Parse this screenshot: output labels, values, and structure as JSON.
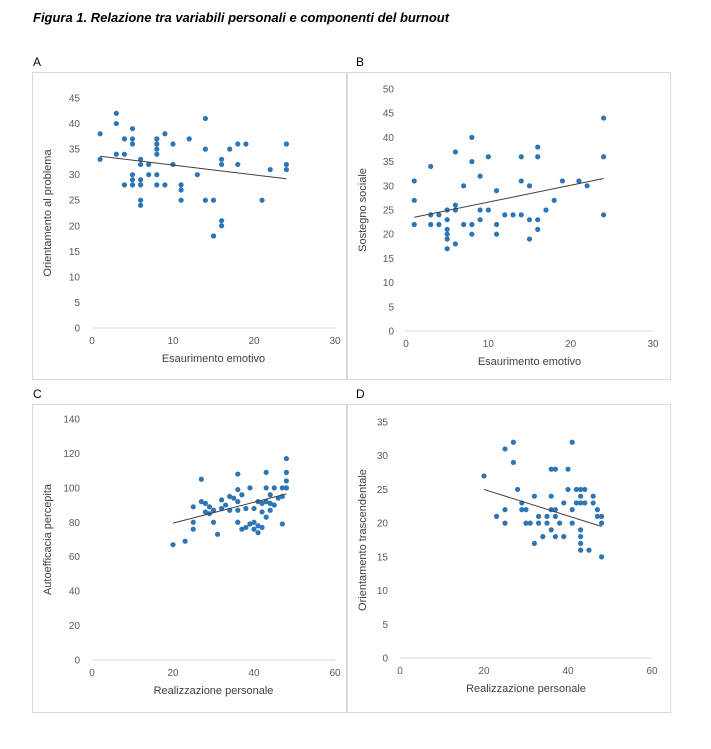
{
  "figure": {
    "title": "Figura 1. Relazione tra variabili personali e componenti del burnout"
  },
  "colors": {
    "marker": "#2e75b6",
    "trend": "#404040",
    "axis": "#d9d9d9",
    "text": "#595959"
  },
  "chart_data": [
    {
      "panel": "A",
      "type": "scatter",
      "xlabel": "Esaurimento emotivo",
      "ylabel": "Orientamento al problema",
      "xlim": [
        0,
        30
      ],
      "ylim": [
        0,
        45
      ],
      "xticks": [
        0,
        10,
        20,
        30
      ],
      "yticks": [
        0,
        5,
        10,
        15,
        20,
        25,
        30,
        35,
        40,
        45
      ],
      "trendline": {
        "x": [
          1,
          24
        ],
        "y": [
          33.6,
          29.2
        ]
      },
      "points": [
        [
          1,
          38
        ],
        [
          1,
          33
        ],
        [
          3,
          42
        ],
        [
          3,
          40
        ],
        [
          3,
          34
        ],
        [
          4,
          37
        ],
        [
          4,
          34
        ],
        [
          4,
          28
        ],
        [
          5,
          39
        ],
        [
          5,
          37
        ],
        [
          5,
          36
        ],
        [
          5,
          30
        ],
        [
          5,
          28
        ],
        [
          5,
          29
        ],
        [
          6,
          33
        ],
        [
          6,
          32
        ],
        [
          6,
          25
        ],
        [
          6,
          24
        ],
        [
          6,
          28
        ],
        [
          6,
          29
        ],
        [
          7,
          32
        ],
        [
          7,
          30
        ],
        [
          8,
          37
        ],
        [
          8,
          36
        ],
        [
          8,
          35
        ],
        [
          8,
          34
        ],
        [
          8,
          30
        ],
        [
          8,
          28
        ],
        [
          9,
          38
        ],
        [
          9,
          28
        ],
        [
          10,
          36
        ],
        [
          10,
          32
        ],
        [
          11,
          28
        ],
        [
          11,
          27
        ],
        [
          11,
          25
        ],
        [
          12,
          37
        ],
        [
          13,
          30
        ],
        [
          14,
          41
        ],
        [
          14,
          35
        ],
        [
          14,
          25
        ],
        [
          15,
          25
        ],
        [
          15,
          18
        ],
        [
          16,
          33
        ],
        [
          16,
          32
        ],
        [
          16,
          21
        ],
        [
          16,
          20
        ],
        [
          17,
          35
        ],
        [
          18,
          36
        ],
        [
          18,
          32
        ],
        [
          19,
          36
        ],
        [
          21,
          25
        ],
        [
          22,
          31
        ],
        [
          24,
          36
        ],
        [
          24,
          32
        ],
        [
          24,
          31
        ]
      ]
    },
    {
      "panel": "B",
      "type": "scatter",
      "xlabel": "Esaurimento emotivo",
      "ylabel": "Sostegno sociale",
      "xlim": [
        0,
        30
      ],
      "ylim": [
        0,
        50
      ],
      "xticks": [
        0,
        10,
        20,
        30
      ],
      "yticks": [
        0,
        5,
        10,
        15,
        20,
        25,
        30,
        35,
        40,
        45,
        50
      ],
      "trendline": {
        "x": [
          1,
          24
        ],
        "y": [
          23.5,
          31.5
        ]
      },
      "points": [
        [
          1,
          31
        ],
        [
          1,
          27
        ],
        [
          1,
          22
        ],
        [
          3,
          34
        ],
        [
          3,
          24
        ],
        [
          3,
          22
        ],
        [
          4,
          24
        ],
        [
          4,
          22
        ],
        [
          5,
          25
        ],
        [
          5,
          23
        ],
        [
          5,
          21
        ],
        [
          5,
          20
        ],
        [
          5,
          19
        ],
        [
          5,
          17
        ],
        [
          6,
          37
        ],
        [
          6,
          26
        ],
        [
          6,
          25
        ],
        [
          6,
          18
        ],
        [
          7,
          30
        ],
        [
          7,
          22
        ],
        [
          8,
          40
        ],
        [
          8,
          35
        ],
        [
          8,
          22
        ],
        [
          8,
          20
        ],
        [
          9,
          32
        ],
        [
          9,
          25
        ],
        [
          9,
          23
        ],
        [
          10,
          36
        ],
        [
          10,
          25
        ],
        [
          11,
          29
        ],
        [
          11,
          22
        ],
        [
          11,
          20
        ],
        [
          12,
          24
        ],
        [
          13,
          24
        ],
        [
          14,
          36
        ],
        [
          14,
          31
        ],
        [
          14,
          24
        ],
        [
          15,
          30
        ],
        [
          15,
          23
        ],
        [
          15,
          19
        ],
        [
          16,
          38
        ],
        [
          16,
          36
        ],
        [
          16,
          23
        ],
        [
          16,
          21
        ],
        [
          17,
          25
        ],
        [
          18,
          27
        ],
        [
          19,
          31
        ],
        [
          21,
          31
        ],
        [
          22,
          30
        ],
        [
          24,
          44
        ],
        [
          24,
          36
        ],
        [
          24,
          24
        ]
      ]
    },
    {
      "panel": "C",
      "type": "scatter",
      "xlabel": "Realizzazione personale",
      "ylabel": "Autoefficacia percepita",
      "xlim": [
        0,
        60
      ],
      "ylim": [
        0,
        140
      ],
      "xticks": [
        0,
        20,
        40,
        60
      ],
      "yticks": [
        0,
        20,
        40,
        60,
        80,
        100,
        120,
        140
      ],
      "trendline": {
        "x": [
          20,
          48
        ],
        "y": [
          79.5,
          96.5
        ]
      },
      "points": [
        [
          20,
          67
        ],
        [
          23,
          69
        ],
        [
          25,
          76
        ],
        [
          25,
          80
        ],
        [
          25,
          89
        ],
        [
          27,
          105
        ],
        [
          27,
          92
        ],
        [
          28,
          91
        ],
        [
          28,
          86
        ],
        [
          29,
          89
        ],
        [
          29,
          85
        ],
        [
          30,
          87
        ],
        [
          30,
          80
        ],
        [
          31,
          73
        ],
        [
          32,
          93
        ],
        [
          32,
          88
        ],
        [
          33,
          90
        ],
        [
          34,
          95
        ],
        [
          34,
          87
        ],
        [
          35,
          94
        ],
        [
          36,
          108
        ],
        [
          36,
          99
        ],
        [
          36,
          92
        ],
        [
          36,
          87
        ],
        [
          36,
          80
        ],
        [
          37,
          96
        ],
        [
          37,
          76
        ],
        [
          38,
          88
        ],
        [
          38,
          77
        ],
        [
          39,
          100
        ],
        [
          39,
          79
        ],
        [
          40,
          88
        ],
        [
          40,
          80
        ],
        [
          40,
          76
        ],
        [
          41,
          92
        ],
        [
          41,
          78
        ],
        [
          41,
          74
        ],
        [
          42,
          91
        ],
        [
          42,
          86
        ],
        [
          42,
          77
        ],
        [
          43,
          109
        ],
        [
          43,
          100
        ],
        [
          43,
          92
        ],
        [
          43,
          83
        ],
        [
          44,
          96
        ],
        [
          44,
          91
        ],
        [
          44,
          87
        ],
        [
          45,
          100
        ],
        [
          45,
          90
        ],
        [
          46,
          94
        ],
        [
          47,
          100
        ],
        [
          47,
          95
        ],
        [
          47,
          79
        ],
        [
          48,
          117
        ],
        [
          48,
          109
        ],
        [
          48,
          104
        ],
        [
          48,
          100
        ]
      ]
    },
    {
      "panel": "D",
      "type": "scatter",
      "xlabel": "Realizzazione personale",
      "ylabel": "Orientamento trascendentale",
      "xlim": [
        0,
        60
      ],
      "ylim": [
        0,
        35
      ],
      "xticks": [
        0,
        20,
        40,
        60
      ],
      "yticks": [
        0,
        5,
        10,
        15,
        20,
        25,
        30,
        35
      ],
      "trendline": {
        "x": [
          20,
          48
        ],
        "y": [
          25,
          19.5
        ]
      },
      "points": [
        [
          20,
          27
        ],
        [
          23,
          21
        ],
        [
          25,
          31
        ],
        [
          25,
          22
        ],
        [
          25,
          20
        ],
        [
          27,
          32
        ],
        [
          27,
          29
        ],
        [
          28,
          25
        ],
        [
          29,
          23
        ],
        [
          29,
          22
        ],
        [
          30,
          22
        ],
        [
          30,
          20
        ],
        [
          31,
          20
        ],
        [
          32,
          24
        ],
        [
          32,
          17
        ],
        [
          33,
          21
        ],
        [
          33,
          20
        ],
        [
          34,
          18
        ],
        [
          35,
          21
        ],
        [
          35,
          20
        ],
        [
          36,
          28
        ],
        [
          36,
          24
        ],
        [
          36,
          22
        ],
        [
          36,
          19
        ],
        [
          37,
          28
        ],
        [
          37,
          22
        ],
        [
          37,
          21
        ],
        [
          37,
          18
        ],
        [
          38,
          20
        ],
        [
          39,
          23
        ],
        [
          39,
          18
        ],
        [
          40,
          28
        ],
        [
          40,
          25
        ],
        [
          41,
          32
        ],
        [
          41,
          22
        ],
        [
          41,
          20
        ],
        [
          42,
          25
        ],
        [
          42,
          23
        ],
        [
          43,
          25
        ],
        [
          43,
          24
        ],
        [
          43,
          23
        ],
        [
          43,
          19
        ],
        [
          43,
          18
        ],
        [
          43,
          17
        ],
        [
          43,
          16
        ],
        [
          44,
          25
        ],
        [
          44,
          23
        ],
        [
          45,
          16
        ],
        [
          46,
          24
        ],
        [
          46,
          23
        ],
        [
          47,
          22
        ],
        [
          47,
          21
        ],
        [
          48,
          21
        ],
        [
          48,
          20
        ],
        [
          48,
          15
        ]
      ]
    }
  ]
}
